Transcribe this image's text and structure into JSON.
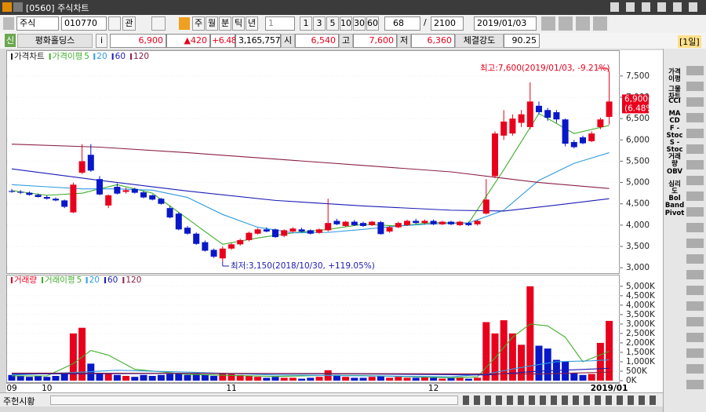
{
  "header": {
    "title": "[0560] 주식차트"
  },
  "toolbar": {
    "market": "주식",
    "code": "010770",
    "watch": "관",
    "periods": [
      "주",
      "월",
      "분",
      "틱",
      "년"
    ],
    "unit": "1",
    "minutes": [
      "1",
      "3",
      "5",
      "10",
      "30",
      "60"
    ],
    "count": "68",
    "separator": "/",
    "max_count": "2100",
    "date": "2019/01/03"
  },
  "info": {
    "badge": "신",
    "name": "평화홀딩스",
    "info_button": "i",
    "price": "6,900",
    "change": "▲420",
    "change_rate": "+6.48%",
    "volume": "3,165,757",
    "open_label": "시",
    "open": "6,540",
    "high_label": "고",
    "high": "7,600",
    "low_label": "저",
    "low": "6,360",
    "strength_label": "체결강도",
    "strength": "90.25",
    "period": "[1일]"
  },
  "chart_data": [
    {
      "type": "candlestick",
      "title": "가격차트",
      "ma_label": "가격이평",
      "categories": [
        "09",
        null,
        null,
        null,
        "10",
        null,
        null,
        null,
        null,
        null,
        null,
        null,
        null,
        null,
        null,
        null,
        null,
        null,
        null,
        null,
        null,
        null,
        null,
        null,
        null,
        "11",
        null,
        null,
        null,
        null,
        null,
        null,
        null,
        null,
        null,
        null,
        null,
        null,
        null,
        null,
        null,
        null,
        null,
        null,
        null,
        null,
        null,
        null,
        "12",
        null,
        null,
        null,
        null,
        null,
        null,
        null,
        null,
        null,
        null,
        null,
        null,
        null,
        null,
        null,
        null,
        null,
        null,
        null,
        "2019/01"
      ],
      "open": [
        4800,
        4780,
        4760,
        4710,
        4660,
        4620,
        4580,
        4300,
        5230,
        5650,
        5080,
        4460,
        4900,
        4780,
        4850,
        4770,
        4700,
        4620,
        4400,
        4270,
        3940,
        3800,
        3600,
        3420,
        3220,
        3450,
        3550,
        3650,
        3800,
        3900,
        3900,
        3750,
        3850,
        3900,
        3880,
        3820,
        3880,
        4100,
        3980,
        4080,
        4050,
        4000,
        4070,
        3850,
        3950,
        4000,
        4100,
        4050,
        4100,
        4020,
        4080,
        4000,
        4050,
        4020,
        4270,
        5150,
        6100,
        6150,
        6400,
        6300,
        6800,
        6700,
        6650,
        6480,
        5950,
        6060,
        5970,
        6300,
        6540
      ],
      "high": [
        4850,
        4820,
        4790,
        4740,
        4700,
        4650,
        4600,
        5000,
        5900,
        5900,
        5150,
        4720,
        4980,
        4880,
        4880,
        4800,
        4720,
        4640,
        4450,
        4300,
        3980,
        3830,
        3640,
        3450,
        3500,
        3580,
        3680,
        3850,
        3930,
        3950,
        3920,
        3900,
        3950,
        3940,
        3900,
        3920,
        4620,
        4150,
        4100,
        4120,
        4080,
        4100,
        4100,
        3980,
        4080,
        4130,
        4150,
        4130,
        4130,
        4100,
        4100,
        4100,
        4080,
        4120,
        5080,
        6200,
        6700,
        6600,
        6700,
        7350,
        6900,
        6750,
        6700,
        6500,
        6000,
        6100,
        6200,
        6520,
        7600
      ],
      "low": [
        4760,
        4730,
        4690,
        4650,
        4600,
        4560,
        4400,
        4280,
        5200,
        5250,
        4700,
        4400,
        4720,
        4740,
        4740,
        4630,
        4580,
        4480,
        4160,
        3880,
        3780,
        3540,
        3380,
        3230,
        3150,
        3420,
        3520,
        3620,
        3780,
        3830,
        3700,
        3720,
        3820,
        3830,
        3780,
        3800,
        3850,
        4000,
        3960,
        3980,
        3960,
        3980,
        3780,
        3820,
        3930,
        3980,
        4030,
        4020,
        4000,
        4000,
        4000,
        3980,
        3980,
        3990,
        4250,
        5100,
        6000,
        6100,
        6300,
        6250,
        6600,
        6450,
        6400,
        5850,
        5800,
        5900,
        5950,
        6250,
        6360
      ],
      "close": [
        4780,
        4760,
        4710,
        4660,
        4620,
        4580,
        4430,
        4950,
        5500,
        5280,
        4720,
        4700,
        4740,
        4820,
        4760,
        4650,
        4600,
        4500,
        4180,
        3900,
        3800,
        3560,
        3400,
        3260,
        3450,
        3550,
        3650,
        3820,
        3900,
        3850,
        3720,
        3880,
        3920,
        3850,
        3800,
        3900,
        4050,
        4020,
        4080,
        4000,
        3980,
        4080,
        3790,
        3950,
        4050,
        4100,
        4050,
        4100,
        4020,
        4080,
        4020,
        4080,
        4000,
        4100,
        4600,
        6150,
        6430,
        6500,
        6600,
        6900,
        6650,
        6520,
        6480,
        5910,
        5830,
        5920,
        6150,
        6480,
        6900
      ],
      "up_color": "#e8001c",
      "down_color": "#0818c8",
      "ma_series": [
        {
          "name": "5",
          "color": "#3fae2a",
          "x": [
            0,
            4,
            8,
            12,
            16,
            20,
            24,
            28,
            32,
            36,
            40,
            44,
            48,
            52,
            56,
            60,
            64,
            68
          ],
          "values": [
            4810,
            4700,
            4750,
            4950,
            4750,
            4150,
            3550,
            3700,
            3820,
            3900,
            4020,
            3980,
            4060,
            4050,
            5300,
            6620,
            6150,
            6340
          ]
        },
        {
          "name": "20",
          "color": "#2f9be0",
          "x": [
            0,
            4,
            8,
            12,
            16,
            20,
            24,
            28,
            32,
            36,
            40,
            44,
            48,
            52,
            56,
            60,
            64,
            68
          ],
          "values": [
            4950,
            4900,
            4850,
            4850,
            4820,
            4650,
            4250,
            3950,
            3820,
            3830,
            3900,
            3980,
            4030,
            4050,
            4350,
            5050,
            5450,
            5700
          ]
        },
        {
          "name": "60",
          "color": "#1c1cb4",
          "x": [
            0,
            10,
            20,
            30,
            40,
            50,
            56,
            62,
            68
          ],
          "values": [
            5320,
            5050,
            4800,
            4580,
            4450,
            4350,
            4330,
            4470,
            4620
          ]
        },
        {
          "name": "120",
          "color": "#8a1f45",
          "x": [
            0,
            10,
            20,
            30,
            40,
            50,
            60,
            68
          ],
          "values": [
            5900,
            5830,
            5700,
            5550,
            5400,
            5250,
            5000,
            4860
          ]
        }
      ],
      "annotations": [
        "최고:7,600(2019/01/03, -9.21%)",
        "최저:3,150(2018/10/30, +119.05%)"
      ],
      "last_labels": [
        "6,900",
        "(6.48%)"
      ],
      "ylim": [
        2930,
        8030
      ],
      "yticks": [
        {
          "value": 3000,
          "label": "3,000"
        },
        {
          "value": 3500,
          "label": "3,500"
        },
        {
          "value": 4000,
          "label": "4,000"
        },
        {
          "value": 4500,
          "label": "4,500"
        },
        {
          "value": 5000,
          "label": "5,000"
        },
        {
          "value": 5500,
          "label": "5,500"
        },
        {
          "value": 6000,
          "label": "6,000"
        },
        {
          "value": 6500,
          "label": "6,500"
        },
        {
          "value": 7000,
          "label": "7,000"
        },
        {
          "value": 7500,
          "label": "7,500"
        }
      ]
    },
    {
      "type": "bar",
      "title": "거래량",
      "ma_label": "거래이평",
      "values": [
        300,
        250,
        200,
        250,
        200,
        250,
        400,
        2500,
        2800,
        900,
        400,
        350,
        300,
        250,
        200,
        300,
        250,
        300,
        350,
        400,
        300,
        350,
        300,
        250,
        400,
        350,
        300,
        250,
        200,
        150,
        200,
        150,
        150,
        100,
        150,
        200,
        550,
        300,
        200,
        150,
        150,
        200,
        250,
        150,
        200,
        150,
        150,
        200,
        150,
        100,
        150,
        150,
        100,
        150,
        3100,
        2500,
        3200,
        2500,
        1900,
        5000,
        1850,
        1700,
        1100,
        1000,
        400,
        300,
        350,
        2000,
        3166
      ],
      "ma_series": [
        {
          "name": "5",
          "color": "#3fae2a",
          "x": [
            0,
            4,
            7,
            9,
            11,
            14,
            20,
            30,
            36,
            40,
            50,
            53,
            55,
            57,
            59,
            61,
            63,
            65,
            68
          ],
          "values": [
            250,
            250,
            900,
            1600,
            1350,
            600,
            330,
            220,
            280,
            270,
            150,
            200,
            1200,
            2300,
            3000,
            2900,
            2300,
            1000,
            1550
          ]
        },
        {
          "name": "20",
          "color": "#2f9be0",
          "x": [
            0,
            8,
            12,
            20,
            30,
            40,
            50,
            54,
            58,
            62,
            66,
            68
          ],
          "values": [
            300,
            450,
            550,
            450,
            300,
            250,
            200,
            350,
            700,
            1000,
            1050,
            1100
          ]
        },
        {
          "name": "60",
          "color": "#1c1cb4",
          "x": [
            0,
            20,
            40,
            54,
            60,
            68
          ],
          "values": [
            350,
            380,
            350,
            300,
            500,
            650
          ]
        },
        {
          "name": "120",
          "color": "#8a1f45",
          "x": [
            0,
            30,
            60,
            68
          ],
          "values": [
            400,
            380,
            350,
            450
          ]
        }
      ],
      "ylim": [
        0,
        5200
      ],
      "yticks": [
        {
          "value": 0,
          "label": "0K"
        },
        {
          "value": 500,
          "label": "500K"
        },
        {
          "value": 1000,
          "label": "1,000K"
        },
        {
          "value": 1500,
          "label": "1,500K"
        },
        {
          "value": 2000,
          "label": "2,000K"
        },
        {
          "value": 2500,
          "label": "2,500K"
        },
        {
          "value": 3000,
          "label": "3,000K"
        },
        {
          "value": 3500,
          "label": "3,500K"
        },
        {
          "value": 4000,
          "label": "4,000K"
        },
        {
          "value": 4500,
          "label": "4,500K"
        },
        {
          "value": 5000,
          "label": "5,000K"
        }
      ]
    }
  ],
  "footer": {
    "tab": "주헌시황"
  },
  "sidebar": {
    "buttons": [
      [
        "가격",
        "이평"
      ],
      [
        "그물",
        "차트"
      ],
      [
        "CCI"
      ],
      [
        "MA",
        "CD"
      ],
      [
        "F -",
        "Stoc"
      ],
      [
        "S -",
        "Stoc"
      ],
      [
        "거래",
        "량"
      ],
      [
        "OBV"
      ],
      [
        "심리",
        "도"
      ],
      [
        "Bol",
        "Band"
      ],
      [
        "Pivot"
      ]
    ]
  }
}
